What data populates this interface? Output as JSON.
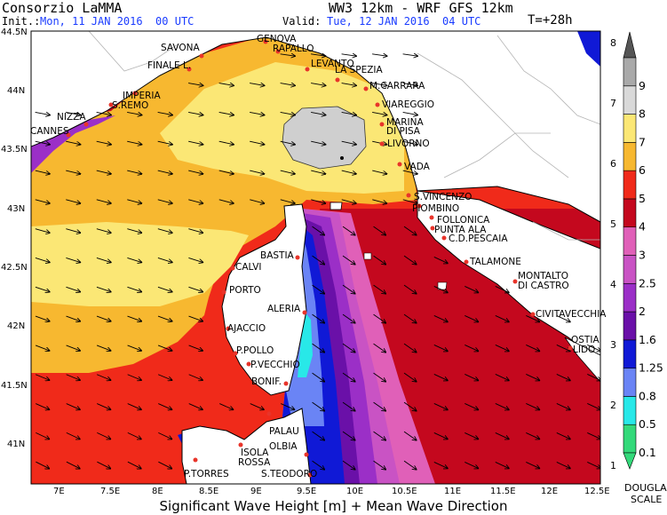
{
  "header": {
    "org": "Consorzio LaMMA",
    "model": "WW3 12km - WRF GFS 12km",
    "init_label": "Init.:",
    "init_value": "Mon, 11 JAN 2016  00 UTC",
    "valid_label": "Valid:",
    "valid_value": "Tue, 12 JAN 2016  04 UTC",
    "lead": "T=+28h"
  },
  "footer": {
    "title": "Significant Wave Height [m] + Mean Wave Direction"
  },
  "axes": {
    "x_ticks": [
      "7E",
      "7.5E",
      "8E",
      "8.5E",
      "9E",
      "9.5E",
      "10E",
      "10.5E",
      "11E",
      "11.5E",
      "12E",
      "12.5E"
    ],
    "y_ticks": [
      "44.5N",
      "44N",
      "43.5N",
      "43N",
      "42.5N",
      "42N",
      "41.5N",
      "41N"
    ]
  },
  "colorbar": {
    "levels": [
      {
        "label": "0.1",
        "color": "#33d97a"
      },
      {
        "label": "0.5",
        "color": "#28e8e8"
      },
      {
        "label": "0.8",
        "color": "#6a84f5"
      },
      {
        "label": "1.25",
        "color": "#1019d6"
      },
      {
        "label": "1.6",
        "color": "#6a10a8"
      },
      {
        "label": "2",
        "color": "#9b2fc7"
      },
      {
        "label": "2.5",
        "color": "#c953c4"
      },
      {
        "label": "3",
        "color": "#e060b8"
      },
      {
        "label": "4",
        "color": "#c4081e"
      },
      {
        "label": "5",
        "color": "#f02a1a"
      },
      {
        "label": "6",
        "color": "#f7b830"
      },
      {
        "label": "7",
        "color": "#fbe775"
      },
      {
        "label": "8",
        "color": "#d9d9d9"
      },
      {
        "label": "9",
        "color": "#a9a9a9"
      }
    ],
    "douglas": [
      "1",
      "2",
      "3",
      "4",
      "5",
      "6",
      "7",
      "8"
    ],
    "douglas_label_1": "DOUGLAS",
    "douglas_label_2": "SCALE"
  },
  "places": [
    {
      "name": "GENOVA"
    },
    {
      "name": "SAVONA"
    },
    {
      "name": "RAPALLO"
    },
    {
      "name": "LEVANTO"
    },
    {
      "name": "FINALE L."
    },
    {
      "name": "LA SPEZIA"
    },
    {
      "name": "IMPERIA"
    },
    {
      "name": "M.CARRARA"
    },
    {
      "name": "S.REMO"
    },
    {
      "name": "VIAREGGIO"
    },
    {
      "name": "NIZZA"
    },
    {
      "name": "MARINA"
    },
    {
      "name": "DI PISA"
    },
    {
      "name": "CANNES"
    },
    {
      "name": "LIVORNO"
    },
    {
      "name": "VADA"
    },
    {
      "name": "S.VINCENZO"
    },
    {
      "name": "PIOMBINO"
    },
    {
      "name": "FOLLONICA"
    },
    {
      "name": "PUNTA ALA"
    },
    {
      "name": "C.D.PESCAIA"
    },
    {
      "name": "BASTIA"
    },
    {
      "name": "CALVI"
    },
    {
      "name": "TALAMONE"
    },
    {
      "name": "MONTALTO"
    },
    {
      "name": "DI CASTRO"
    },
    {
      "name": "PORTO"
    },
    {
      "name": "ALERIA"
    },
    {
      "name": "CIVITAVECCHIA"
    },
    {
      "name": "AJACCIO"
    },
    {
      "name": "OSTIA"
    },
    {
      "name": "LIDO"
    },
    {
      "name": "P.POLLO"
    },
    {
      "name": "P.VECCHIO"
    },
    {
      "name": "BONIF."
    },
    {
      "name": "PALAU"
    },
    {
      "name": "OLBIA"
    },
    {
      "name": "ISOLA"
    },
    {
      "name": "ROSSA"
    },
    {
      "name": "P.TORRES"
    },
    {
      "name": "S.TEODORO"
    }
  ]
}
